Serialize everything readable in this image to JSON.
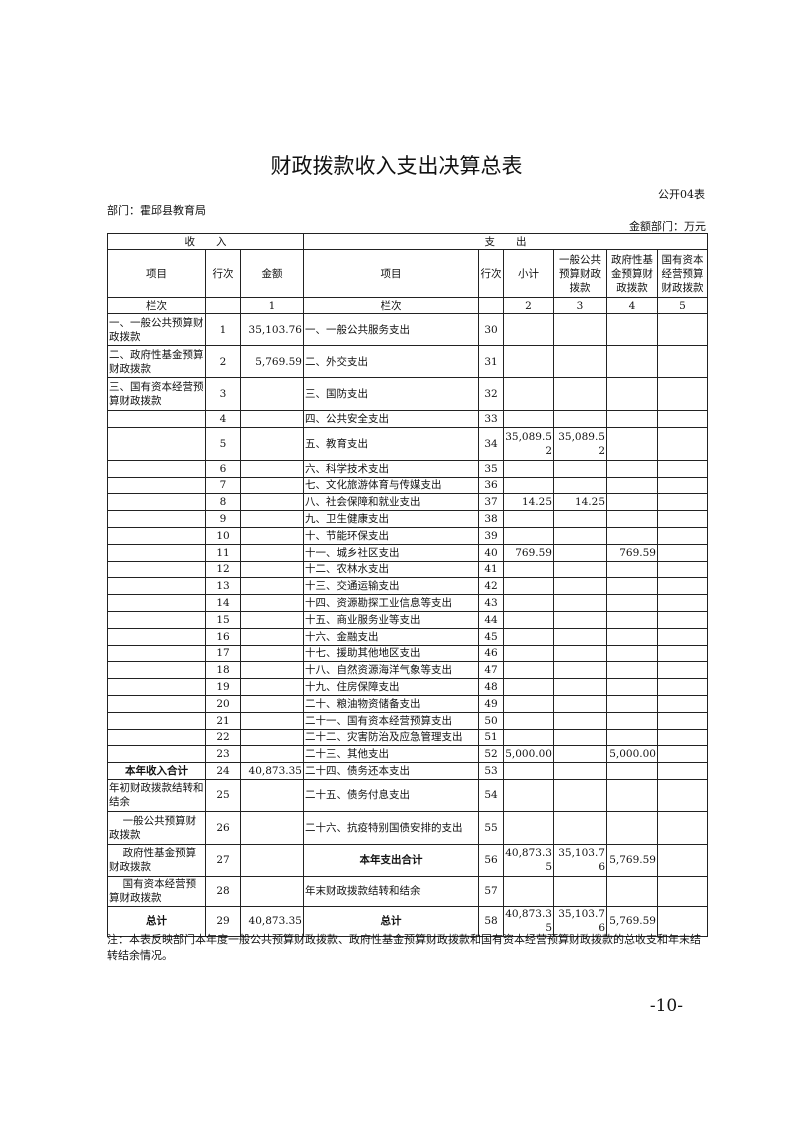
{
  "title": "财政拨款收入支出决算总表",
  "form_no": "公开04表",
  "department": "部门：霍邱县教育局",
  "unit": "金额部门：万元",
  "header": {
    "income": "收　　入",
    "expense": "支　　出",
    "columns": [
      "项目",
      "行次",
      "金额",
      "项目",
      "行次",
      "小计",
      "一般公共预算财政拨款",
      "政府性基金预算财政拨款",
      "国有资本经营预算财政拨款"
    ],
    "column_index": [
      "栏次",
      "",
      "1",
      "栏次",
      "",
      "2",
      "3",
      "4",
      "5"
    ]
  },
  "rows": [
    [
      "一、一般公共预算财政拨款",
      "1",
      "35,103.76",
      "一、一般公共服务支出",
      "30",
      "",
      "",
      "",
      ""
    ],
    [
      "二、政府性基金预算财政拨款",
      "2",
      "5,769.59",
      "二、外交支出",
      "31",
      "",
      "",
      "",
      ""
    ],
    [
      "三、国有资本经营预算财政拨款",
      "3",
      "",
      "三、国防支出",
      "32",
      "",
      "",
      "",
      ""
    ],
    [
      "",
      "4",
      "",
      "四、公共安全支出",
      "33",
      "",
      "",
      "",
      ""
    ],
    [
      "",
      "5",
      "",
      "五、教育支出",
      "34",
      "35,089.52",
      "35,089.52",
      "",
      ""
    ],
    [
      "",
      "6",
      "",
      "六、科学技术支出",
      "35",
      "",
      "",
      "",
      ""
    ],
    [
      "",
      "7",
      "",
      "七、文化旅游体育与传媒支出",
      "36",
      "",
      "",
      "",
      ""
    ],
    [
      "",
      "8",
      "",
      "八、社会保障和就业支出",
      "37",
      "14.25",
      "14.25",
      "",
      ""
    ],
    [
      "",
      "9",
      "",
      "九、卫生健康支出",
      "38",
      "",
      "",
      "",
      ""
    ],
    [
      "",
      "10",
      "",
      "十、节能环保支出",
      "39",
      "",
      "",
      "",
      ""
    ],
    [
      "",
      "11",
      "",
      "十一、城乡社区支出",
      "40",
      "769.59",
      "",
      "769.59",
      ""
    ],
    [
      "",
      "12",
      "",
      "十二、农林水支出",
      "41",
      "",
      "",
      "",
      ""
    ],
    [
      "",
      "13",
      "",
      "十三、交通运输支出",
      "42",
      "",
      "",
      "",
      ""
    ],
    [
      "",
      "14",
      "",
      "十四、资源勘探工业信息等支出",
      "43",
      "",
      "",
      "",
      ""
    ],
    [
      "",
      "15",
      "",
      "十五、商业服务业等支出",
      "44",
      "",
      "",
      "",
      ""
    ],
    [
      "",
      "16",
      "",
      "十六、金融支出",
      "45",
      "",
      "",
      "",
      ""
    ],
    [
      "",
      "17",
      "",
      "十七、援助其他地区支出",
      "46",
      "",
      "",
      "",
      ""
    ],
    [
      "",
      "18",
      "",
      "十八、自然资源海洋气象等支出",
      "47",
      "",
      "",
      "",
      ""
    ],
    [
      "",
      "19",
      "",
      "十九、住房保障支出",
      "48",
      "",
      "",
      "",
      ""
    ],
    [
      "",
      "20",
      "",
      "二十、粮油物资储备支出",
      "49",
      "",
      "",
      "",
      ""
    ],
    [
      "",
      "21",
      "",
      "二十一、国有资本经营预算支出",
      "50",
      "",
      "",
      "",
      ""
    ],
    [
      "",
      "22",
      "",
      "二十二、灾害防治及应急管理支出",
      "51",
      "",
      "",
      "",
      ""
    ],
    [
      "",
      "23",
      "",
      "二十三、其他支出",
      "52",
      "5,000.00",
      "",
      "5,000.00",
      ""
    ],
    [
      "本年收入合计",
      "24",
      "40,873.35",
      "二十四、债务还本支出",
      "53",
      "",
      "",
      "",
      ""
    ],
    [
      "年初财政拨款结转和结余",
      "25",
      "",
      "二十五、债务付息支出",
      "54",
      "",
      "",
      "",
      ""
    ],
    [
      "一般公共预算财政拨款",
      "26",
      "",
      "二十六、抗疫特别国债安排的支出",
      "55",
      "",
      "",
      "",
      ""
    ],
    [
      "政府性基金预算财政拨款",
      "27",
      "",
      "本年支出合计",
      "56",
      "40,873.35",
      "35,103.76",
      "5,769.59",
      ""
    ],
    [
      "国有资本经营预算财政拨款",
      "28",
      "",
      "年末财政拨款结转和结余",
      "57",
      "",
      "",
      "",
      ""
    ],
    [
      "总计",
      "29",
      "40,873.35",
      "总计",
      "58",
      "40,873.35",
      "35,103.76",
      "5,769.59",
      ""
    ]
  ],
  "note": "注：本表反映部门本年度一般公共预算财政拨款、政府性基金预算财政拨款和国有资本经营预算财政拨款的总收支和年末结转结余情况。",
  "page_number": "-10-"
}
